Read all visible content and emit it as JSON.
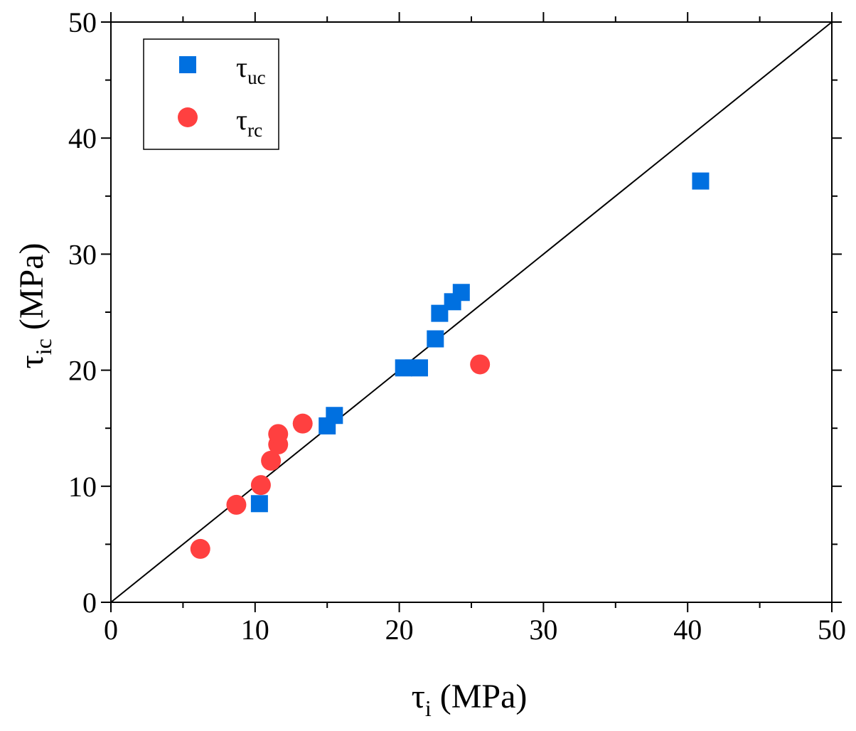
{
  "chart_data": {
    "type": "scatter",
    "xlabel": {
      "symbol": "τ",
      "sub": "i",
      "unit": " (MPa)"
    },
    "ylabel": {
      "symbol": "τ",
      "sub": "ic",
      "unit": " (MPa)"
    },
    "xlim": [
      0,
      50
    ],
    "ylim": [
      0,
      50
    ],
    "x_ticks": [
      0,
      10,
      20,
      30,
      40,
      50
    ],
    "y_ticks": [
      0,
      10,
      20,
      30,
      40,
      50
    ],
    "x_tick_labels": [
      "0",
      "10",
      "20",
      "30",
      "40",
      "50"
    ],
    "y_tick_labels": [
      "0",
      "10",
      "20",
      "30",
      "40",
      "50"
    ],
    "minor_tick_step": 5,
    "grid": false,
    "legend_position": "top-left",
    "reference_line": {
      "type": "y=x",
      "from": [
        0,
        0
      ],
      "to": [
        50,
        50
      ]
    },
    "series": [
      {
        "name": "τuc",
        "legend_symbol": "τ",
        "legend_sub": "uc",
        "marker": "square",
        "color": "#0070E0",
        "points": [
          {
            "x": 10.3,
            "y": 8.5
          },
          {
            "x": 15.0,
            "y": 15.2
          },
          {
            "x": 15.5,
            "y": 16.1
          },
          {
            "x": 20.3,
            "y": 20.2
          },
          {
            "x": 21.4,
            "y": 20.2
          },
          {
            "x": 22.5,
            "y": 22.7
          },
          {
            "x": 22.8,
            "y": 24.9
          },
          {
            "x": 23.7,
            "y": 25.9
          },
          {
            "x": 24.3,
            "y": 26.7
          },
          {
            "x": 40.9,
            "y": 36.3
          }
        ]
      },
      {
        "name": "τrc",
        "legend_symbol": "τ",
        "legend_sub": "rc",
        "marker": "circle",
        "color": "#FF4040",
        "points": [
          {
            "x": 6.2,
            "y": 4.6
          },
          {
            "x": 8.7,
            "y": 8.4
          },
          {
            "x": 10.4,
            "y": 10.1
          },
          {
            "x": 11.1,
            "y": 12.2
          },
          {
            "x": 11.6,
            "y": 13.6
          },
          {
            "x": 11.6,
            "y": 14.5
          },
          {
            "x": 13.3,
            "y": 15.4
          },
          {
            "x": 25.6,
            "y": 20.5
          }
        ]
      }
    ]
  }
}
